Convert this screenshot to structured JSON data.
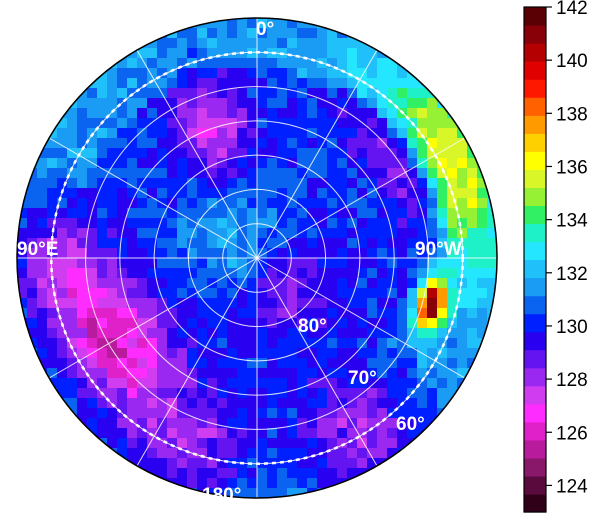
{
  "chart_data": {
    "type": "heatmap",
    "projection": "polar",
    "title": "",
    "angular_labels": [
      {
        "angle": 0,
        "text": "0°"
      },
      {
        "angle": 90,
        "text": "90°W"
      },
      {
        "angle": 180,
        "text": "180°"
      },
      {
        "angle": 270,
        "text": "90°E"
      }
    ],
    "radial_labels": [
      "80°",
      "70°",
      "60°"
    ],
    "radial_values": [
      80,
      70,
      60
    ],
    "latitude_range": [
      55,
      90
    ],
    "dashed_circle_latitude": 60,
    "grid": true,
    "colorbar": {
      "min": 123,
      "max": 142,
      "ticks": [
        124,
        126,
        128,
        130,
        132,
        134,
        136,
        138,
        140,
        142
      ],
      "tick_labels": [
        "124",
        "126",
        "128",
        "130",
        "132",
        "134",
        "136",
        "138",
        "140",
        "142"
      ],
      "placement": "right",
      "colors": [
        "#300018",
        "#5a0a3c",
        "#8a186a",
        "#b81c9c",
        "#e020c8",
        "#ff2cff",
        "#d03cf0",
        "#9a28f0",
        "#6414f0",
        "#2a00f0",
        "#0020ff",
        "#0a64f0",
        "#1a9cf4",
        "#20c0fa",
        "#24e6ff",
        "#1ef0c8",
        "#32f064",
        "#96f034",
        "#d8f628",
        "#ffff00",
        "#ffd000",
        "#ff9a00",
        "#ff6000",
        "#ff1800",
        "#e00000",
        "#b40000",
        "#880008",
        "#5a0004"
      ]
    },
    "features": [
      {
        "name": "outer ring",
        "value": 132
      },
      {
        "name": "polar core",
        "value": 130
      },
      {
        "name": "hot spot near 100°W",
        "value": 141
      },
      {
        "name": "warm limb band near 80°W",
        "value": 135
      },
      {
        "name": "cold patch near 90°E",
        "value": 127
      },
      {
        "name": "cold patch near 120°E",
        "value": 125
      },
      {
        "name": "cold patch near 20°E",
        "value": 127
      },
      {
        "name": "cold patch near 150°W",
        "value": 126
      }
    ]
  }
}
